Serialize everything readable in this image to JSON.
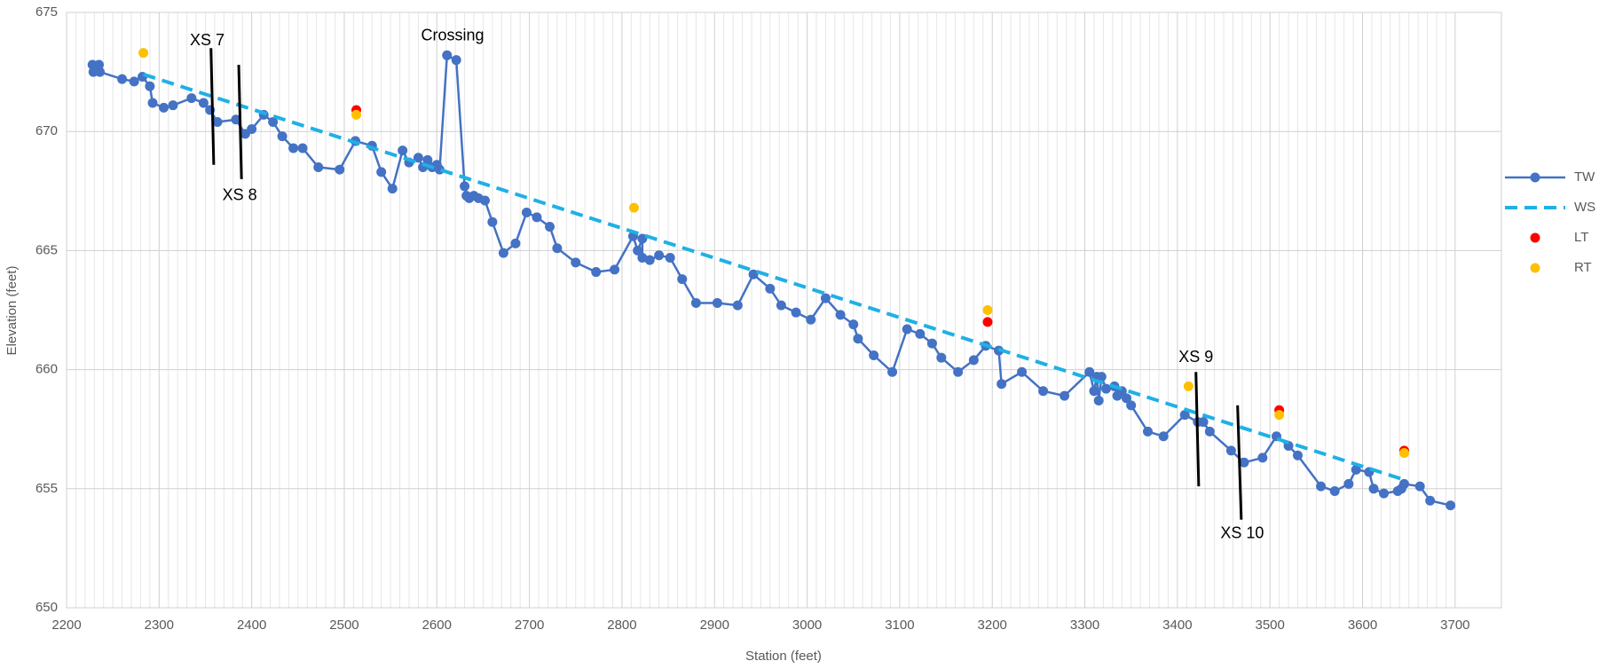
{
  "chart_data": {
    "type": "scatter",
    "x_label": "Station (feet)",
    "y_label": "Elevation (feet)",
    "xlim": [
      2200,
      3750
    ],
    "ylim": [
      650,
      675
    ],
    "xticks": [
      2200,
      2300,
      2400,
      2500,
      2600,
      2700,
      2800,
      2900,
      3000,
      3100,
      3200,
      3300,
      3400,
      3500,
      3600,
      3700
    ],
    "yticks": [
      650,
      655,
      660,
      665,
      670,
      675
    ],
    "grid": true,
    "minor_grid": true,
    "legend": "right",
    "series": [
      {
        "name": "TW",
        "color": "#4472c4",
        "line": "solid",
        "marker": true,
        "x": [
          2228,
          2235,
          2229,
          2236,
          2260,
          2273,
          2282,
          2290,
          2293,
          2305,
          2315,
          2335,
          2348,
          2355,
          2363,
          2383,
          2393,
          2400,
          2413,
          2423,
          2433,
          2445,
          2455,
          2472,
          2495,
          2512,
          2530,
          2540,
          2552,
          2563,
          2570,
          2580,
          2585,
          2590,
          2595,
          2600,
          2603,
          2611,
          2621,
          2630,
          2632,
          2635,
          2640,
          2645,
          2652,
          2660,
          2672,
          2685,
          2697,
          2708,
          2722,
          2730,
          2750,
          2772,
          2792,
          2812,
          2817,
          2822,
          2822,
          2830,
          2840,
          2852,
          2865,
          2880,
          2903,
          2925,
          2942,
          2960,
          2972,
          2988,
          3004,
          3020,
          3036,
          3050,
          3055,
          3072,
          3092,
          3108,
          3122,
          3135,
          3145,
          3163,
          3180,
          3193,
          3207,
          3210,
          3232,
          3255,
          3278,
          3305,
          3310,
          3313,
          3315,
          3318,
          3323,
          3332,
          3335,
          3340,
          3345,
          3350,
          3368,
          3385,
          3408,
          3422,
          3428,
          3435,
          3458,
          3472,
          3492,
          3507,
          3520,
          3530,
          3555,
          3570,
          3585,
          3593,
          3607,
          3612,
          3623,
          3638,
          3642,
          3645,
          3662,
          3673,
          3695
        ],
        "values": [
          672.8,
          672.8,
          672.5,
          672.5,
          672.2,
          672.1,
          672.3,
          671.9,
          671.2,
          671.0,
          671.1,
          671.4,
          671.2,
          670.9,
          670.4,
          670.5,
          669.9,
          670.1,
          670.7,
          670.4,
          669.8,
          669.3,
          669.3,
          668.5,
          668.4,
          669.6,
          669.4,
          668.3,
          667.6,
          669.2,
          668.7,
          668.9,
          668.5,
          668.8,
          668.5,
          668.6,
          668.4,
          673.2,
          673.0,
          667.7,
          667.3,
          667.2,
          667.3,
          667.2,
          667.1,
          666.2,
          664.9,
          665.3,
          666.6,
          666.4,
          666.0,
          665.1,
          664.5,
          664.1,
          664.2,
          665.6,
          665.0,
          665.5,
          664.7,
          664.6,
          664.8,
          664.7,
          663.8,
          662.8,
          662.8,
          662.7,
          664.0,
          663.4,
          662.7,
          662.4,
          662.1,
          663.0,
          662.3,
          661.9,
          661.3,
          660.6,
          659.9,
          661.7,
          661.5,
          661.1,
          660.5,
          659.9,
          660.4,
          661.0,
          660.8,
          659.4,
          659.9,
          659.1,
          658.9,
          659.9,
          659.1,
          659.7,
          658.7,
          659.7,
          659.2,
          659.3,
          658.9,
          659.1,
          658.8,
          658.5,
          657.4,
          657.2,
          658.1,
          657.8,
          657.8,
          657.4,
          656.6,
          656.1,
          656.3,
          657.2,
          656.8,
          656.4,
          655.1,
          654.9,
          655.2,
          655.8,
          655.7,
          655.0,
          654.8,
          654.9,
          655.0,
          655.2,
          655.1,
          654.5,
          654.3
        ]
      },
      {
        "name": "WS",
        "color": "#1fb0e6",
        "line": "dashed",
        "marker": false,
        "x": [
          2283,
          3643
        ],
        "values": [
          672.4,
          655.4
        ]
      },
      {
        "name": "LT",
        "color": "#ff0000",
        "line": "none",
        "marker": true,
        "x": [
          2513,
          3195,
          3510,
          3645
        ],
        "values": [
          670.9,
          662.0,
          658.3,
          656.6
        ]
      },
      {
        "name": "RT",
        "color": "#ffc000",
        "line": "none",
        "marker": true,
        "x": [
          2283,
          2513,
          2813,
          3195,
          3412,
          3510,
          3645
        ],
        "values": [
          673.3,
          670.7,
          666.8,
          662.5,
          659.3,
          658.1,
          656.5
        ]
      }
    ],
    "annotations": [
      {
        "text": "XS 7",
        "x": 2352,
        "y": 673.8,
        "line": [
          2356,
          673.5,
          2359,
          668.6
        ]
      },
      {
        "text": "XS 8",
        "x": 2387,
        "y": 667.3,
        "line": [
          2386,
          672.8,
          2389,
          668.0
        ]
      },
      {
        "text": "Crossing",
        "x": 2617,
        "y": 674.0
      },
      {
        "text": "XS 9",
        "x": 3420,
        "y": 660.5,
        "line": [
          3420,
          659.9,
          3423,
          655.1
        ]
      },
      {
        "text": "XS 10",
        "x": 3470,
        "y": 653.1,
        "line": [
          3465,
          658.5,
          3469,
          653.7
        ]
      }
    ]
  }
}
